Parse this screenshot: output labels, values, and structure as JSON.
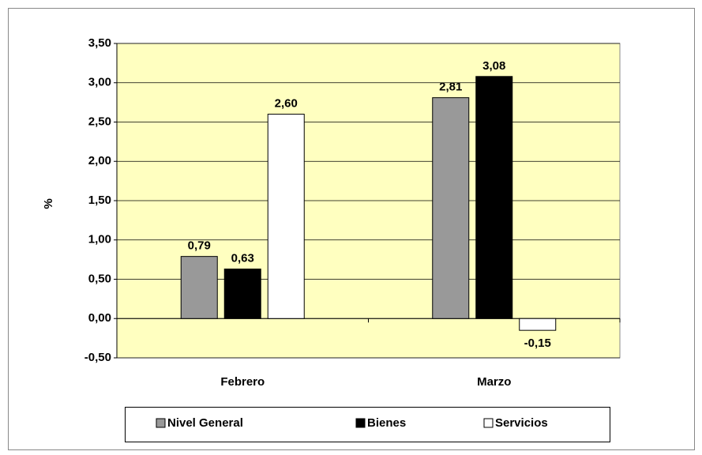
{
  "chart_data": {
    "type": "bar",
    "y_label": "%",
    "categories": [
      "Febrero",
      "Marzo"
    ],
    "series": [
      {
        "name": "Nivel General",
        "color": "#999999",
        "values": [
          0.79,
          2.81
        ],
        "value_labels": [
          "0,79",
          "2,81"
        ]
      },
      {
        "name": "Bienes",
        "color": "#000000",
        "values": [
          0.63,
          3.08
        ],
        "value_labels": [
          "0,63",
          "3,08"
        ]
      },
      {
        "name": "Servicios",
        "color": "#ffffff",
        "values": [
          2.6,
          -0.15
        ],
        "value_labels": [
          "2,60",
          "-0,15"
        ]
      }
    ],
    "ylim": [
      -0.5,
      3.5
    ],
    "yticks": [
      {
        "value": -0.5,
        "label": "-0,50"
      },
      {
        "value": 0,
        "label": "0,00"
      },
      {
        "value": 0.5,
        "label": "0,50"
      },
      {
        "value": 1,
        "label": "1,00"
      },
      {
        "value": 1.5,
        "label": "1,50"
      },
      {
        "value": 2,
        "label": "2,00"
      },
      {
        "value": 2.5,
        "label": "2,50"
      },
      {
        "value": 3,
        "label": "3,00"
      },
      {
        "value": 3.5,
        "label": "3,50"
      }
    ],
    "grid": true,
    "legend": "bottom",
    "plot_background": "#ffffc0"
  }
}
